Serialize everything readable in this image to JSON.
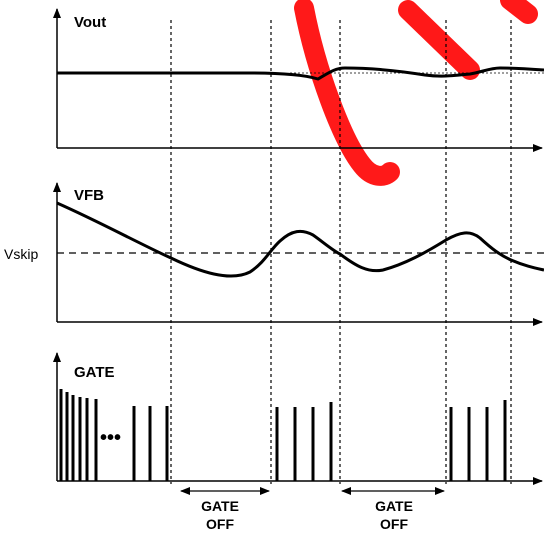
{
  "panels": {
    "vout": {
      "label": "Vout"
    },
    "vfb": {
      "label": "VFB",
      "reference_label": "Vskip"
    },
    "gate": {
      "label": "GATE",
      "ellipsis": "•••"
    }
  },
  "gate_off": [
    {
      "line1": "GATE",
      "line2": "OFF"
    },
    {
      "line1": "GATE",
      "line2": "OFF"
    }
  ],
  "colors": {
    "ink": "#000000",
    "watermark": "#ff0000",
    "background": "#ffffff"
  }
}
